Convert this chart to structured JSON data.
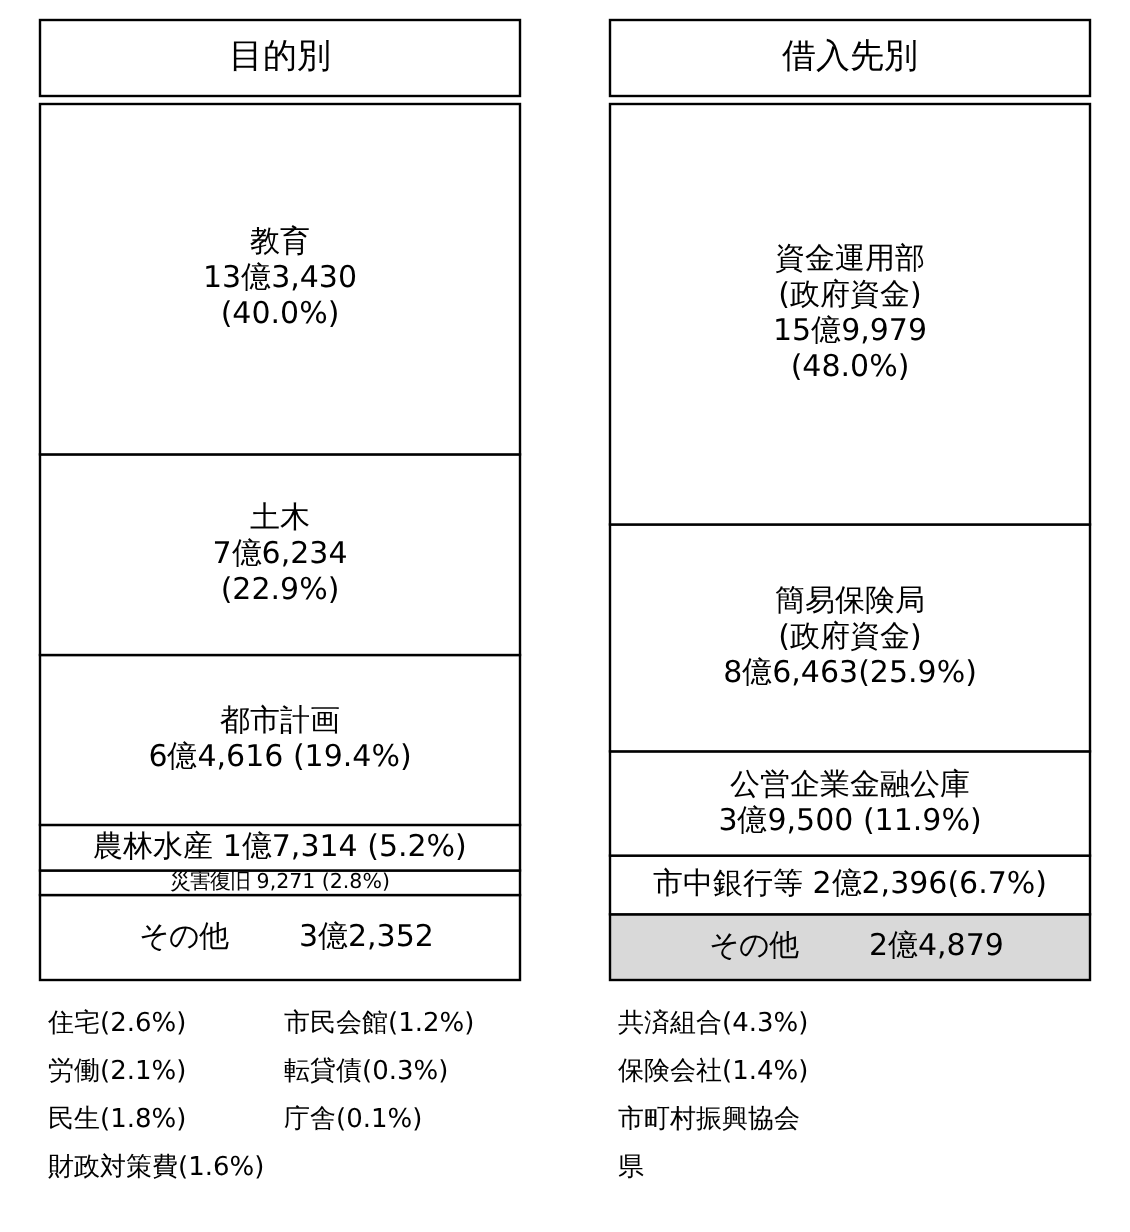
{
  "chart_data": [
    {
      "type": "bar",
      "stacked": true,
      "title": "目的別",
      "categories": [
        null
      ],
      "series": [
        {
          "name": "その他",
          "color": "#ffffff",
          "values": [
            9.7
          ]
        },
        {
          "name": "災害復旧",
          "color": "#ffffff",
          "values": [
            2.8
          ],
          "value_labels": [
            "9,271 (2.8%)"
          ]
        },
        {
          "name": "農林水産",
          "color": "#ffffff",
          "values": [
            5.2
          ],
          "value_labels": [
            "1億7,314 (5.2%)"
          ]
        },
        {
          "name": "都市計画",
          "color": "#ffffff",
          "values": [
            19.4
          ],
          "value_labels": [
            "6億4,616 (19.4%)"
          ]
        },
        {
          "name": "土木",
          "color": "#ffffff",
          "values": [
            22.9
          ],
          "value_labels": [
            "7億6,234\n(22.9%)"
          ]
        },
        {
          "name": "教育",
          "color": "#ffffff",
          "values": [
            40.0
          ],
          "value_labels": [
            "13億3,430\n(40.0%)"
          ]
        }
      ],
      "annotations": [
        "3億2,352",
        "住宅(2.6%)",
        "労働(2.1%)",
        "民生(1.8%)",
        "財政対策費(1.6%)",
        "市民会館(1.2%)",
        "転貸債(0.3%)",
        "庁舎(0.1%)"
      ]
    },
    {
      "type": "bar",
      "stacked": true,
      "title": "借入先別",
      "categories": [
        null
      ],
      "series": [
        {
          "name": "その他",
          "color": "#d9d9d9",
          "values": [
            7.5
          ]
        },
        {
          "name": "市中銀行等",
          "color": "#ffffff",
          "values": [
            6.7
          ],
          "value_labels": [
            "2億2,396(6.7%)"
          ]
        },
        {
          "name": "公営企業金融公庫",
          "color": "#ffffff",
          "values": [
            11.9
          ],
          "value_labels": [
            "3億9,500 (11.9%)"
          ]
        },
        {
          "name": "簡易保険局",
          "color": "#ffffff",
          "values": [
            25.9
          ],
          "value_labels": [
            "(政府資金)\n8億6,463(25.9%)"
          ]
        },
        {
          "name": "資金運用部",
          "color": "#ffffff",
          "values": [
            48.0
          ],
          "value_labels": [
            "(政府資金)\n15億9,979\n(48.0%)"
          ]
        }
      ],
      "annotations": [
        "2億4,879",
        "共済組合(4.3%)",
        "保険会社(1.4%)",
        "市町村振興協会",
        "県"
      ]
    }
  ]
}
